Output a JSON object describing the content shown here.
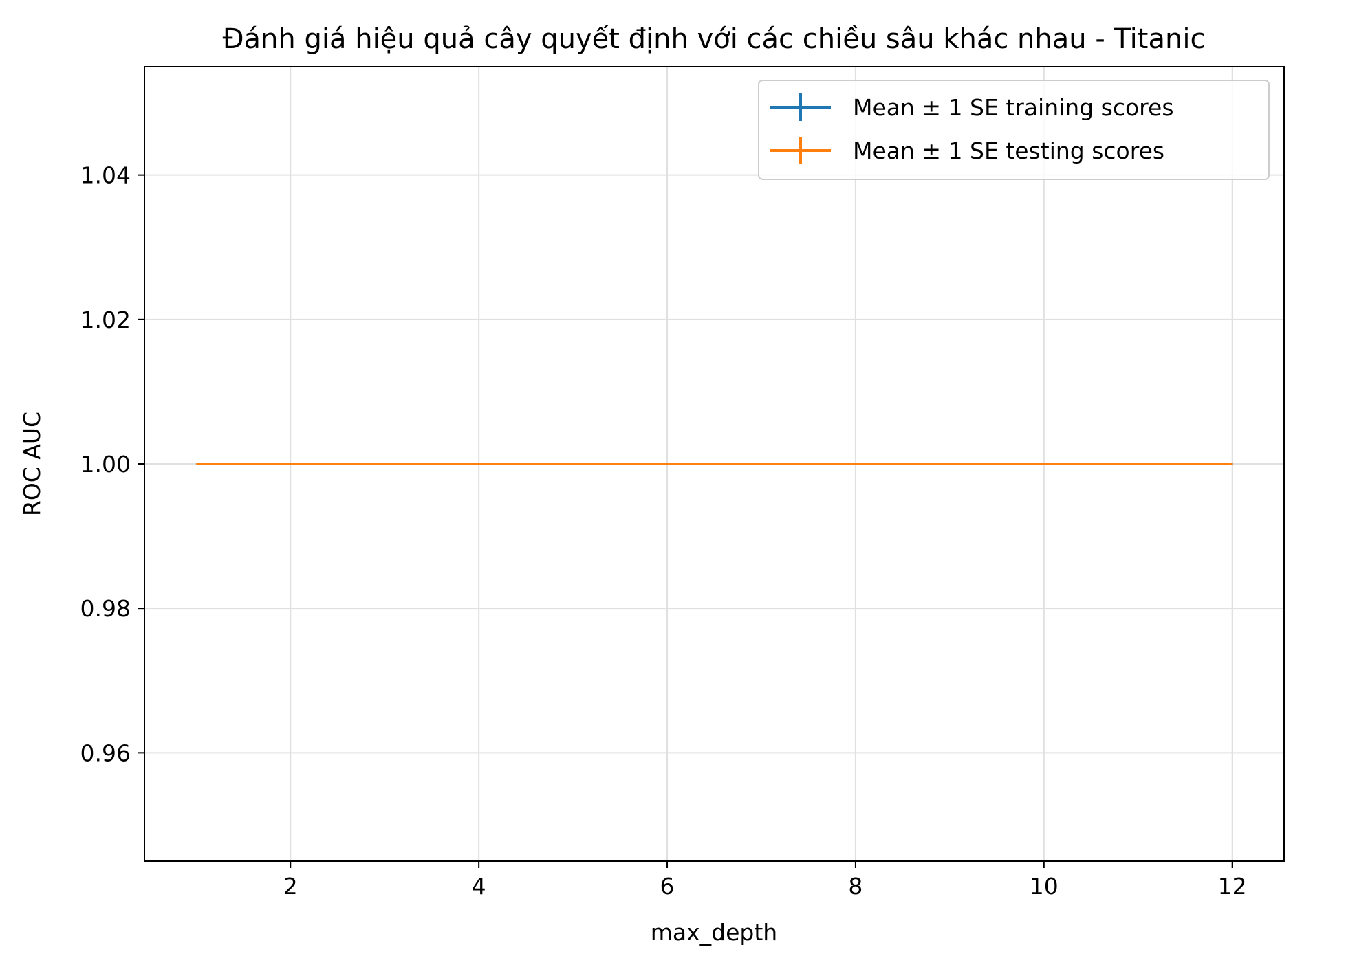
{
  "chart_data": {
    "type": "line",
    "title": "Đánh giá hiệu quả cây quyết định với các chiều sâu khác nhau - Titanic",
    "xlabel": "max_depth",
    "ylabel": "ROC AUC",
    "xlim": [
      0.45,
      12.55
    ],
    "ylim": [
      0.945,
      1.055
    ],
    "xticks": [
      2,
      4,
      6,
      8,
      10,
      12
    ],
    "xtick_labels": [
      "2",
      "4",
      "6",
      "8",
      "10",
      "12"
    ],
    "yticks": [
      0.96,
      0.98,
      1.0,
      1.02,
      1.04
    ],
    "ytick_labels": [
      "0.96",
      "0.98",
      "1.00",
      "1.02",
      "1.04"
    ],
    "grid": true,
    "legend_position": "top-right",
    "x": [
      1,
      2,
      3,
      4,
      5,
      6,
      7,
      8,
      9,
      10,
      11,
      12
    ],
    "series": [
      {
        "name": "Mean ± 1 SE training scores",
        "color": "#1f77b4",
        "values": [
          1.0,
          1.0,
          1.0,
          1.0,
          1.0,
          1.0,
          1.0,
          1.0,
          1.0,
          1.0,
          1.0,
          1.0
        ],
        "error": [
          0,
          0,
          0,
          0,
          0,
          0,
          0,
          0,
          0,
          0,
          0,
          0
        ]
      },
      {
        "name": "Mean ± 1 SE testing scores",
        "color": "#ff7f0e",
        "values": [
          1.0,
          1.0,
          1.0,
          1.0,
          1.0,
          1.0,
          1.0,
          1.0,
          1.0,
          1.0,
          1.0,
          1.0
        ],
        "error": [
          0,
          0,
          0,
          0,
          0,
          0,
          0,
          0,
          0,
          0,
          0,
          0
        ]
      }
    ]
  }
}
